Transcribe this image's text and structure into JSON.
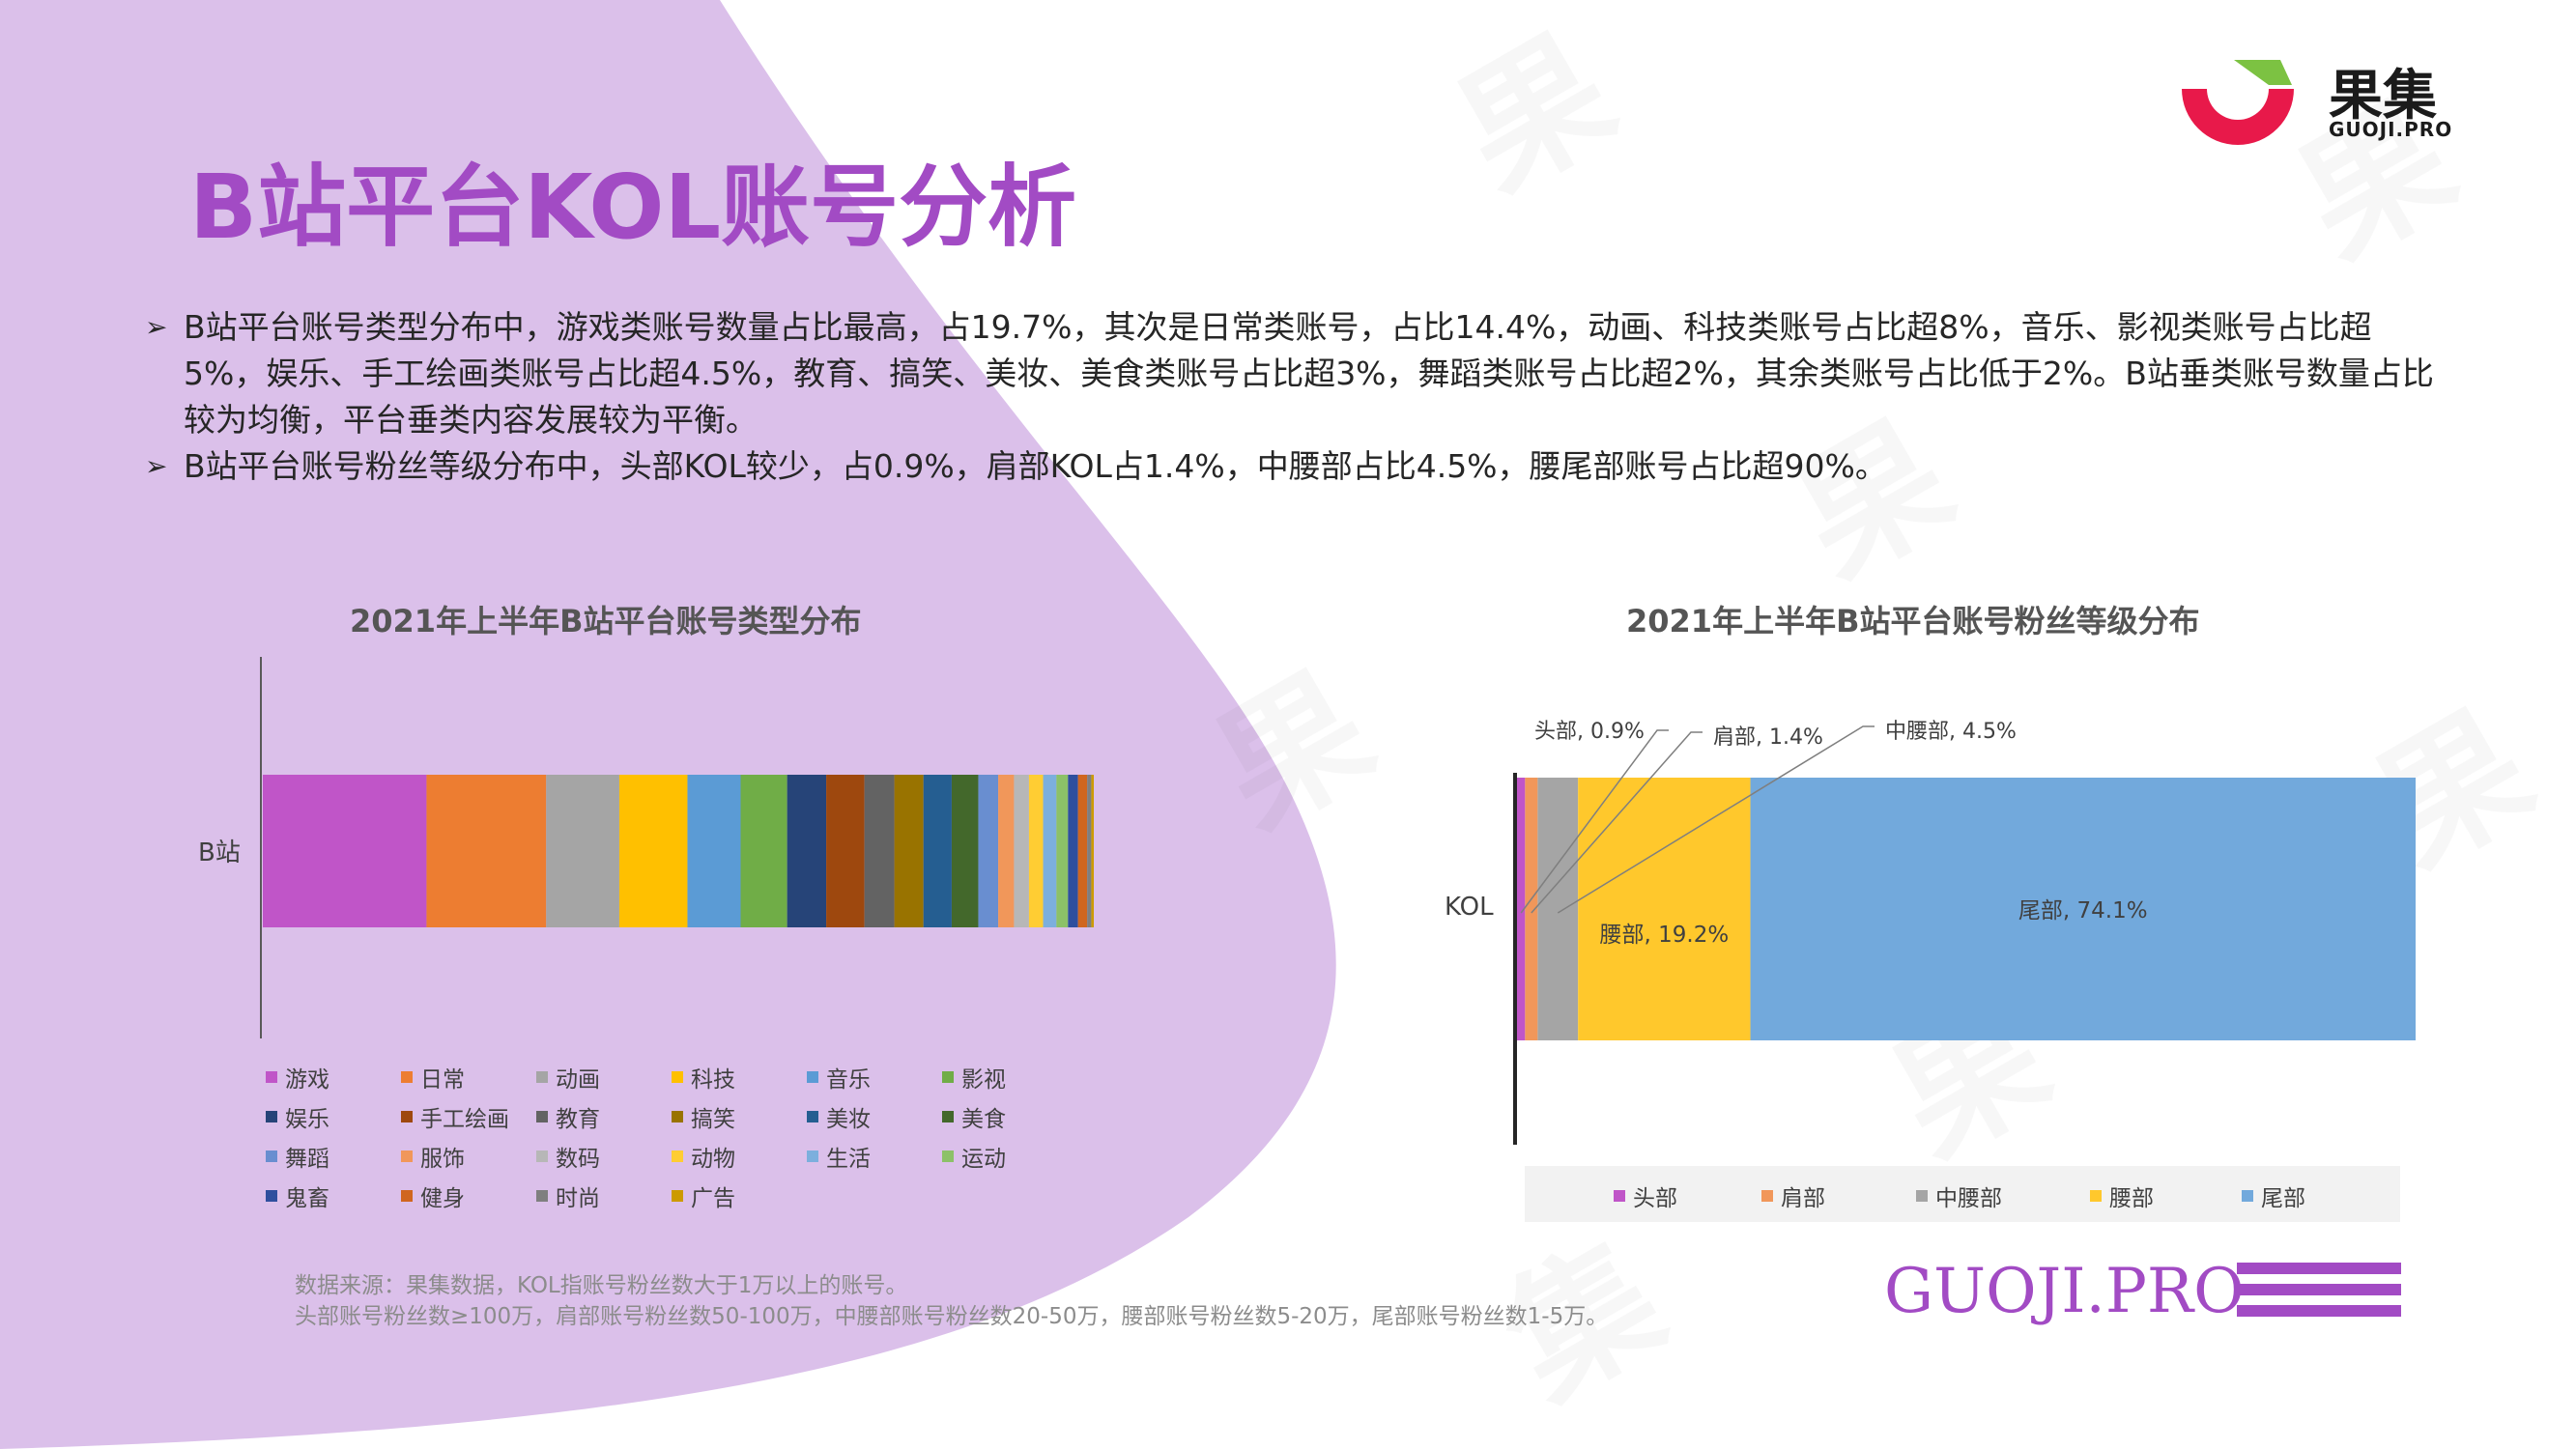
{
  "header": {
    "title": "B站平台KOL账号分析",
    "logo_name": "果集",
    "logo_sub": "GUOJI.PRO"
  },
  "bullets": [
    "B站平台账号类型分布中，游戏类账号数量占比最高，占19.7%，其次是日常类账号，占比14.4%，动画、科技类账号占比超8%，音乐、影视类账号占比超5%，娱乐、手工绘画类账号占比超4.5%，教育、搞笑、美妆、美食类账号占比超3%，舞蹈类账号占比超2%，其余类账号占比低于2%。B站垂类账号数量占比较为均衡，平台垂类内容发展较为平衡。",
    "B站平台账号粉丝等级分布中，头部KOL较少，占0.9%，肩部KOL占1.4%，中腰部占比4.5%，腰尾部账号占比超90%。"
  ],
  "footer": {
    "note_line1": "数据来源：果集数据，KOL指账号粉丝数大于1万以上的账号。",
    "note_line2": "头部账号粉丝数≥100万，肩部账号粉丝数50-100万，中腰部账号粉丝数20-50万，腰部账号粉丝数5-20万，尾部账号粉丝数1-5万。",
    "brand": "GUOJI.PRO"
  },
  "chart_data": [
    {
      "type": "bar",
      "orientation": "horizontal",
      "stacked": true,
      "title": "2021年上半年B站平台账号类型分布",
      "categories": [
        "B站"
      ],
      "legend_position": "bottom",
      "series": [
        {
          "name": "游戏",
          "values": [
            19.7
          ],
          "color": "#c055c8"
        },
        {
          "name": "日常",
          "values": [
            14.4
          ],
          "color": "#ed7d31"
        },
        {
          "name": "动画",
          "values": [
            8.8
          ],
          "color": "#a5a5a5"
        },
        {
          "name": "科技",
          "values": [
            8.2
          ],
          "color": "#ffc000"
        },
        {
          "name": "音乐",
          "values": [
            6.4
          ],
          "color": "#5b9bd5"
        },
        {
          "name": "影视",
          "values": [
            5.6
          ],
          "color": "#70ad47"
        },
        {
          "name": "娱乐",
          "values": [
            4.7
          ],
          "color": "#264478"
        },
        {
          "name": "手工绘画",
          "values": [
            4.6
          ],
          "color": "#9e480e"
        },
        {
          "name": "教育",
          "values": [
            3.6
          ],
          "color": "#636363"
        },
        {
          "name": "搞笑",
          "values": [
            3.5
          ],
          "color": "#997300"
        },
        {
          "name": "美妆",
          "values": [
            3.4
          ],
          "color": "#255e91"
        },
        {
          "name": "美食",
          "values": [
            3.2
          ],
          "color": "#43682b"
        },
        {
          "name": "舞蹈",
          "values": [
            2.4
          ],
          "color": "#698ed0"
        },
        {
          "name": "服饰",
          "values": [
            1.9
          ],
          "color": "#f1975a"
        },
        {
          "name": "数码",
          "values": [
            1.8
          ],
          "color": "#b7b7b7"
        },
        {
          "name": "动物",
          "values": [
            1.7
          ],
          "color": "#ffcd33"
        },
        {
          "name": "生活",
          "values": [
            1.6
          ],
          "color": "#7cafdd"
        },
        {
          "name": "运动",
          "values": [
            1.4
          ],
          "color": "#8cc168"
        },
        {
          "name": "鬼畜",
          "values": [
            1.2
          ],
          "color": "#2f4f9e"
        },
        {
          "name": "健身",
          "values": [
            1.1
          ],
          "color": "#d0661f"
        },
        {
          "name": "时尚",
          "values": [
            0.5
          ],
          "color": "#7f7f7f"
        },
        {
          "name": "广告",
          "values": [
            0.3
          ],
          "color": "#cc9a00"
        }
      ]
    },
    {
      "type": "bar",
      "orientation": "horizontal",
      "stacked": true,
      "title": "2021年上半年B站平台账号粉丝等级分布",
      "categories": [
        "KOL"
      ],
      "legend_position": "bottom",
      "series": [
        {
          "name": "头部",
          "values": [
            0.9
          ],
          "color": "#c055c8",
          "label": "头部, 0.9%"
        },
        {
          "name": "肩部",
          "values": [
            1.4
          ],
          "color": "#f1975a",
          "label": "肩部, 1.4%"
        },
        {
          "name": "中腰部",
          "values": [
            4.5
          ],
          "color": "#a5a5a5",
          "label": "中腰部, 4.5%"
        },
        {
          "name": "腰部",
          "values": [
            19.2
          ],
          "color": "#ffc82c",
          "label": "腰部, 19.2%"
        },
        {
          "name": "尾部",
          "values": [
            74.1
          ],
          "color": "#72a9dc",
          "label": "尾部, 74.1%"
        }
      ]
    }
  ]
}
